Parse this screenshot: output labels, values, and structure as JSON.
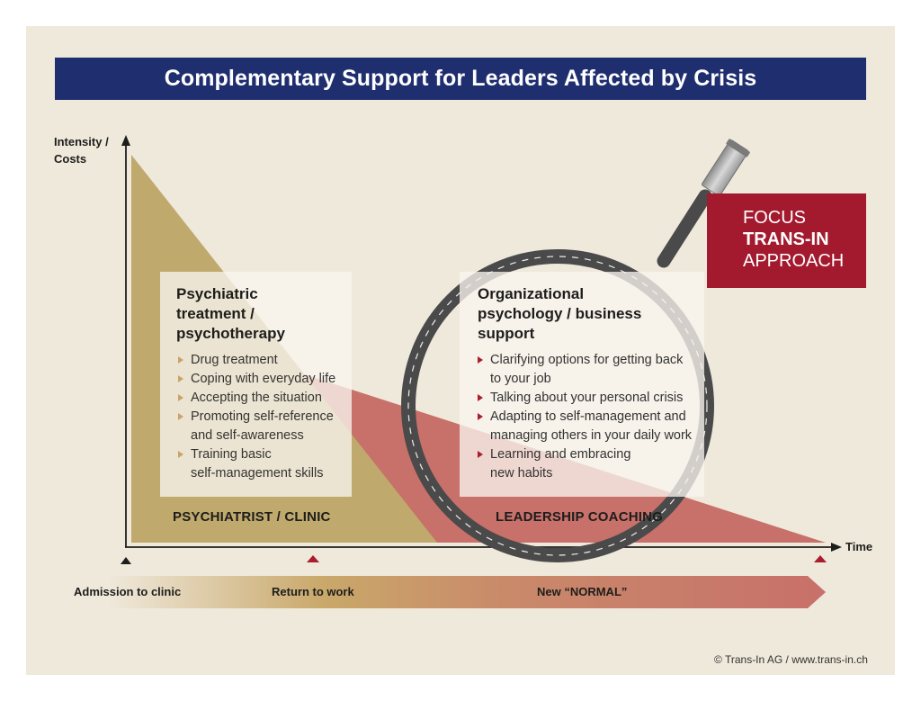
{
  "title": "Complementary Support for Leaders Affected by Crisis",
  "axes": {
    "y_label_line1": "Intensity /",
    "y_label_line2": "Costs",
    "x_label": "Time"
  },
  "left_box": {
    "heading_line1": "Psychiatric",
    "heading_line2": "treatment /",
    "heading_line3": "psychotherapy",
    "items": [
      "Drug treatment",
      "Coping with everyday life",
      "Accepting the situation",
      "Promoting self-reference\nand self-awareness",
      "Training basic\nself-management skills"
    ]
  },
  "right_box": {
    "heading_line1": "Organizational",
    "heading_line2": "psychology / business",
    "heading_line3": "support",
    "items": [
      "Clarifying options for getting back\nto your job",
      "Talking about your personal crisis",
      "Adapting to self-management and\nmanaging others in your daily work",
      "Learning and embracing\nnew habits"
    ]
  },
  "zones": {
    "left": "PSYCHIATRIST / CLINIC",
    "right": "LEADERSHIP COACHING"
  },
  "focus": {
    "line1": "FOCUS",
    "line2": "TRANS-IN",
    "line3": "APPROACH"
  },
  "timeline": {
    "start": "Admission to clinic",
    "middle": "Return to work",
    "end": "New “NORMAL”"
  },
  "footer": "© Trans-In AG / www.trans-in.ch",
  "colors": {
    "navy": "#1f2e6f",
    "gold": "#c0a96c",
    "salmon": "#c8706a",
    "crimson": "#a31a2e",
    "background": "#efe9dc",
    "lens_ring": "#4a4a4a"
  },
  "icons": {
    "magnifier": "magnifying-glass-icon",
    "bullet": "triangle-bullet-icon",
    "marker": "timeline-marker-icon"
  }
}
